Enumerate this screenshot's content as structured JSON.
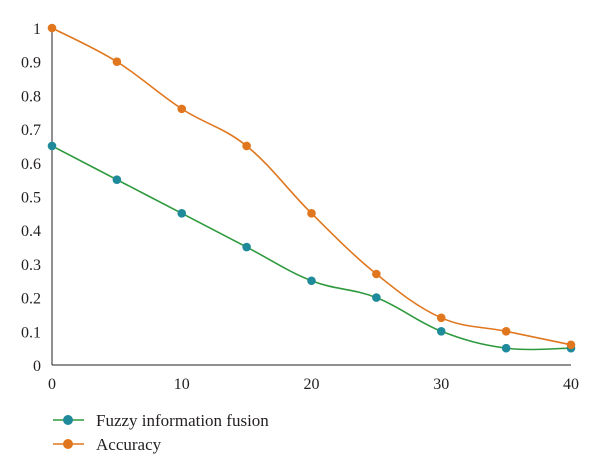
{
  "chart_data": {
    "type": "line",
    "title": "",
    "xlabel": "",
    "ylabel": "",
    "xlim": [
      0,
      40
    ],
    "ylim": [
      0,
      1
    ],
    "x_ticks": [
      0,
      10,
      20,
      30,
      40
    ],
    "y_ticks": [
      0,
      0.1,
      0.2,
      0.3,
      0.4,
      0.5,
      0.6,
      0.7,
      0.8,
      0.9,
      1
    ],
    "grid": false,
    "legend_position": "bottom-left",
    "x": [
      0,
      5,
      10,
      15,
      20,
      25,
      30,
      35,
      40
    ],
    "series": [
      {
        "name": "Fuzzy information fusion",
        "values": [
          0.65,
          0.55,
          0.45,
          0.35,
          0.25,
          0.2,
          0.1,
          0.05,
          0.05
        ],
        "line_color": "#2e9a3e",
        "marker_color": "#1f8a9a"
      },
      {
        "name": "Accuracy",
        "values": [
          1.0,
          0.9,
          0.76,
          0.65,
          0.45,
          0.27,
          0.14,
          0.1,
          0.06
        ],
        "line_color": "#e0771f",
        "marker_color": "#e0771f"
      }
    ]
  }
}
